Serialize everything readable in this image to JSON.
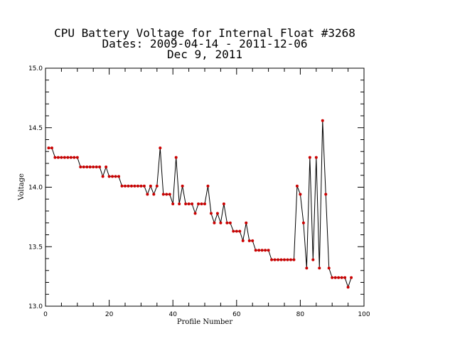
{
  "chart_data": {
    "type": "line",
    "title_lines": [
      "CPU Battery Voltage for Internal Float #3268",
      "Dates:  2009-04-14 -  2011-12-06",
      "Dec  9, 2011"
    ],
    "xlabel": "Profile Number",
    "ylabel": "Voltage",
    "xlim": [
      0,
      100
    ],
    "ylim": [
      13.0,
      15.0
    ],
    "x_ticks": [
      0,
      20,
      40,
      60,
      80,
      100
    ],
    "x_tick_labels": [
      "0",
      "20",
      "40",
      "60",
      "80",
      "100"
    ],
    "y_ticks": [
      13.0,
      13.5,
      14.0,
      14.5,
      15.0
    ],
    "y_tick_labels": [
      "13.0",
      "13.5",
      "14.0",
      "14.5",
      "15.0"
    ],
    "grid": false,
    "line_color": "#000000",
    "marker_color": "#cc0000",
    "series": [
      {
        "x": [
          1,
          2,
          3,
          4,
          5,
          6,
          7,
          8,
          9,
          10,
          11,
          12,
          13,
          14,
          15,
          16,
          17,
          18,
          19,
          20,
          21,
          22,
          23,
          24,
          25,
          26,
          27,
          28,
          29,
          30,
          31,
          32,
          33,
          34,
          35,
          36,
          37,
          38,
          39,
          40,
          41,
          42,
          43,
          44,
          45,
          46,
          47,
          48,
          49,
          50,
          51,
          52,
          53,
          54,
          55,
          56,
          57,
          58,
          59,
          60,
          61,
          62,
          63,
          64,
          65,
          66,
          67,
          68,
          69,
          70,
          71,
          72,
          73,
          74,
          75,
          76,
          77,
          78,
          79,
          80,
          81,
          82,
          83,
          84,
          85,
          86,
          87,
          88,
          89,
          90,
          91,
          92,
          93,
          94,
          95,
          96
        ],
        "y": [
          14.33,
          14.33,
          14.25,
          14.25,
          14.25,
          14.25,
          14.25,
          14.25,
          14.25,
          14.25,
          14.17,
          14.17,
          14.17,
          14.17,
          14.17,
          14.17,
          14.17,
          14.09,
          14.17,
          14.09,
          14.09,
          14.09,
          14.09,
          14.01,
          14.01,
          14.01,
          14.01,
          14.01,
          14.01,
          14.01,
          14.01,
          13.94,
          14.01,
          13.94,
          14.01,
          14.33,
          13.94,
          13.94,
          13.94,
          13.86,
          14.25,
          13.86,
          14.01,
          13.86,
          13.86,
          13.86,
          13.78,
          13.86,
          13.86,
          13.86,
          14.01,
          13.78,
          13.7,
          13.78,
          13.7,
          13.86,
          13.7,
          13.7,
          13.63,
          13.63,
          13.63,
          13.55,
          13.7,
          13.55,
          13.55,
          13.47,
          13.47,
          13.47,
          13.47,
          13.47,
          13.39,
          13.39,
          13.39,
          13.39,
          13.39,
          13.39,
          13.39,
          13.39,
          14.01,
          13.94,
          13.7,
          13.32,
          14.25,
          13.39,
          14.25,
          13.32,
          14.56,
          13.94,
          13.32,
          13.24,
          13.24,
          13.24,
          13.24,
          13.24,
          13.16,
          13.24
        ]
      }
    ]
  }
}
